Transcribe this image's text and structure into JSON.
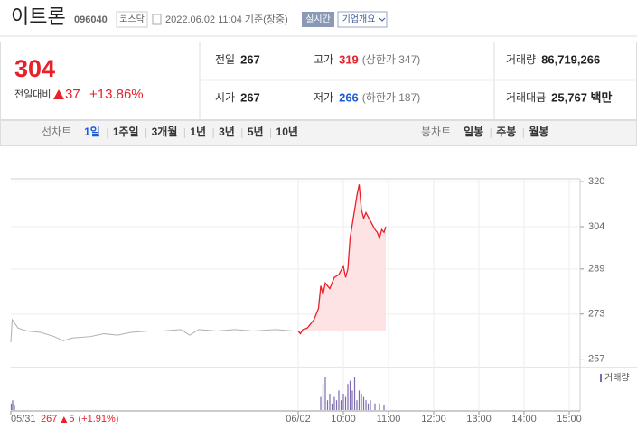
{
  "header": {
    "name": "이트론",
    "code": "096040",
    "market": "코스닥",
    "timestamp": "2022.06.02 11:04 기준(장중)",
    "realtime": "실시간",
    "company": "기업개요"
  },
  "quote": {
    "price": "304",
    "change_label": "전일대비",
    "change": "37",
    "change_pct": "+13.86%",
    "stats": [
      {
        "label": "전일",
        "value": "267",
        "color": "#222222"
      },
      {
        "label": "고가",
        "value": "319",
        "note": "(상한가 347)",
        "color": "#e8202a"
      },
      {
        "label": "거래량",
        "value": "86,719,266",
        "color": "#222222"
      },
      {
        "label": "시가",
        "value": "267",
        "color": "#222222"
      },
      {
        "label": "저가",
        "value": "266",
        "note": "(하한가 187)",
        "color": "#1a5bd6"
      },
      {
        "label": "거래대금",
        "value": "25,767 백만",
        "color": "#222222"
      }
    ]
  },
  "tabs": {
    "line_label": "선차트",
    "line_periods": [
      "1일",
      "1주일",
      "3개월",
      "1년",
      "3년",
      "5년",
      "10년"
    ],
    "active": 0,
    "candle_label": "봉차트",
    "candle_periods": [
      "일봉",
      "주봉",
      "월봉"
    ]
  },
  "chart_data": {
    "type": "line",
    "grid": true,
    "xlim": [
      -6.36,
      6.24
    ],
    "ylim": [
      254,
      321
    ],
    "xticks": [
      {
        "value": -6.36,
        "label": "05/31"
      },
      {
        "value": 0,
        "label": "06/02"
      },
      {
        "value": 1,
        "label": "10:00"
      },
      {
        "value": 2,
        "label": "11:00"
      },
      {
        "value": 3,
        "label": "12:00"
      },
      {
        "value": 4,
        "label": "13:00"
      },
      {
        "value": 5,
        "label": "14:00"
      },
      {
        "value": 6,
        "label": "15:00"
      }
    ],
    "yticks": [
      257,
      273,
      289,
      304,
      320
    ],
    "reference": 267,
    "series": [
      {
        "color": "#b0b0b0",
        "x": [
          -6.36,
          -6.33,
          -6.2,
          -6.0,
          -5.7,
          -5.4,
          -5.2,
          -5.0,
          -4.6,
          -4.3,
          -4.0,
          -3.7,
          -3.3,
          -3.0,
          -2.6,
          -2.4,
          -2.2,
          -1.8,
          -1.4,
          -1.0,
          -0.5,
          -0.1
        ],
        "values": [
          263,
          271,
          268,
          267,
          266.5,
          265,
          263.5,
          264.5,
          265,
          266,
          265.5,
          266.5,
          267,
          267,
          267.5,
          265.5,
          267.5,
          267,
          267.5,
          267,
          267.5,
          267
        ]
      },
      {
        "color": "#e8202a",
        "fill": "#fde3e3",
        "x": [
          0,
          0.05,
          0.1,
          0.2,
          0.35,
          0.45,
          0.5,
          0.55,
          0.6,
          0.7,
          0.8,
          0.9,
          1.0,
          1.05,
          1.1,
          1.15,
          1.2,
          1.3,
          1.35,
          1.4,
          1.45,
          1.5,
          1.6,
          1.7,
          1.75,
          1.8,
          1.85,
          1.9,
          1.94
        ],
        "values": [
          267,
          266,
          267.5,
          268,
          271,
          275,
          283,
          280,
          284,
          282,
          286,
          287,
          290,
          286,
          289,
          300,
          305,
          315,
          319,
          310,
          307,
          309,
          306,
          303,
          302,
          300,
          303,
          302,
          304
        ]
      }
    ],
    "volume": {
      "label": "거래량",
      "color": "#7d6ab0",
      "x": [
        -6.35,
        -6.32,
        -6.28,
        0.5,
        0.55,
        0.6,
        0.65,
        0.7,
        0.75,
        0.8,
        0.85,
        0.9,
        0.95,
        1.0,
        1.05,
        1.1,
        1.15,
        1.2,
        1.25,
        1.3,
        1.35,
        1.4,
        1.45,
        1.5,
        1.55,
        1.6,
        1.7,
        1.8,
        1.9
      ],
      "values": [
        2,
        3,
        1.5,
        4,
        8,
        10,
        3,
        5,
        2,
        4,
        3,
        6,
        3,
        5,
        4,
        8,
        9,
        6,
        10,
        3,
        6,
        5,
        4,
        3,
        2,
        3,
        2,
        2,
        1.5
      ]
    }
  },
  "footer": {
    "price": "267",
    "change": "5",
    "change_pct": "(+1.91%)"
  }
}
